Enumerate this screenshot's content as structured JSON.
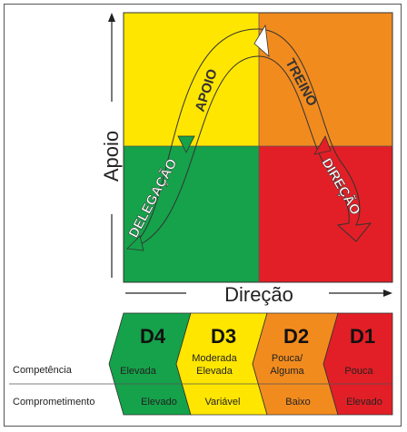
{
  "colors": {
    "yellow": "#ffe600",
    "orange": "#f28b1e",
    "green": "#15a24a",
    "red": "#e21f26",
    "outline": "#333333"
  },
  "axes": {
    "y_label": "Apoio",
    "x_label": "Direção"
  },
  "curve_labels": {
    "delegacao": "DELEGAÇÃO",
    "apoio": "APOIO",
    "treino": "TREINO",
    "direcao": "DIREÇÃO"
  },
  "stages": [
    {
      "code": "D4",
      "competencia": "Elevada",
      "comprometimento": "Elevado",
      "color": "#15a24a"
    },
    {
      "code": "D3",
      "competencia": "Moderada Elevada",
      "competencia_lines": [
        "Moderada",
        "Elevada"
      ],
      "comprometimento": "Variável",
      "color": "#ffe600"
    },
    {
      "code": "D2",
      "competencia": "Pouca/ Alguma",
      "competencia_lines": [
        "Pouca/",
        "Alguma"
      ],
      "comprometimento": "Baixo",
      "color": "#f28b1e"
    },
    {
      "code": "D1",
      "competencia": "Pouca",
      "comprometimento": "Elevado",
      "color": "#e21f26"
    }
  ],
  "row_labels": {
    "competencia": "Competência",
    "comprometimento": "Comprometimento"
  }
}
